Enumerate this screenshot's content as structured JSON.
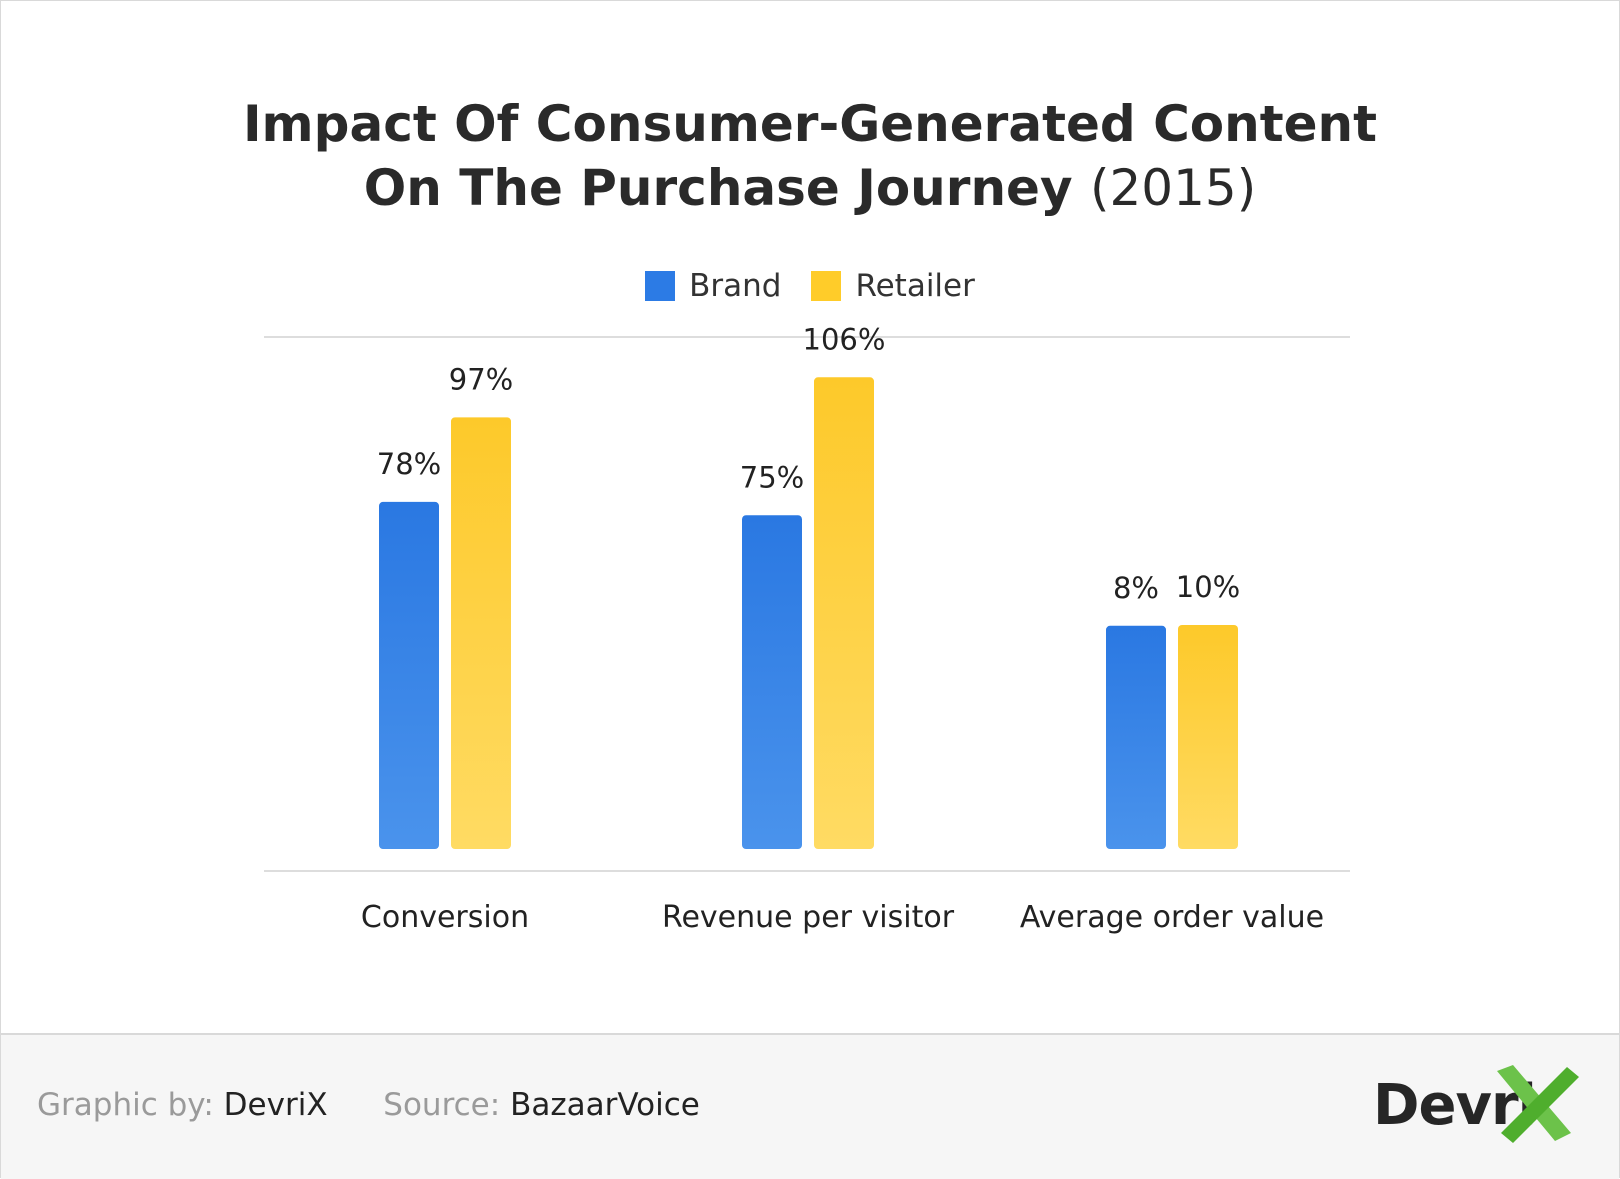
{
  "title": {
    "line1": "Impact Of Consumer-Generated Content",
    "line2": "On The Purchase Journey",
    "year": "(2015)"
  },
  "colors": {
    "brand": "#2c7be5",
    "retailer": "#ffcc29",
    "axis": "#dddddd",
    "text": "#222222"
  },
  "legend": {
    "brand": "Brand",
    "retailer": "Retailer"
  },
  "chart_data": {
    "type": "bar",
    "categories": [
      "Conversion",
      "Revenue per visitor",
      "Average order value"
    ],
    "series": [
      {
        "name": "Brand",
        "values": [
          78,
          75,
          8
        ],
        "labels": [
          "78%",
          "75%",
          "8%"
        ]
      },
      {
        "name": "Retailer",
        "values": [
          97,
          106,
          10
        ],
        "labels": [
          "97%",
          "106%",
          "10%"
        ]
      }
    ],
    "title": "Impact Of Consumer-Generated Content On The Purchase Journey (2015)",
    "xlabel": "",
    "ylabel": "",
    "grid": false,
    "legend": "top-center"
  },
  "footer": {
    "graphic_by_label": "Graphic by:",
    "graphic_by_value": "DevriX",
    "source_label": "Source:",
    "source_value": "BazaarVoice",
    "logo_text": "Devri",
    "logo_icon": "devrix-x-icon"
  }
}
